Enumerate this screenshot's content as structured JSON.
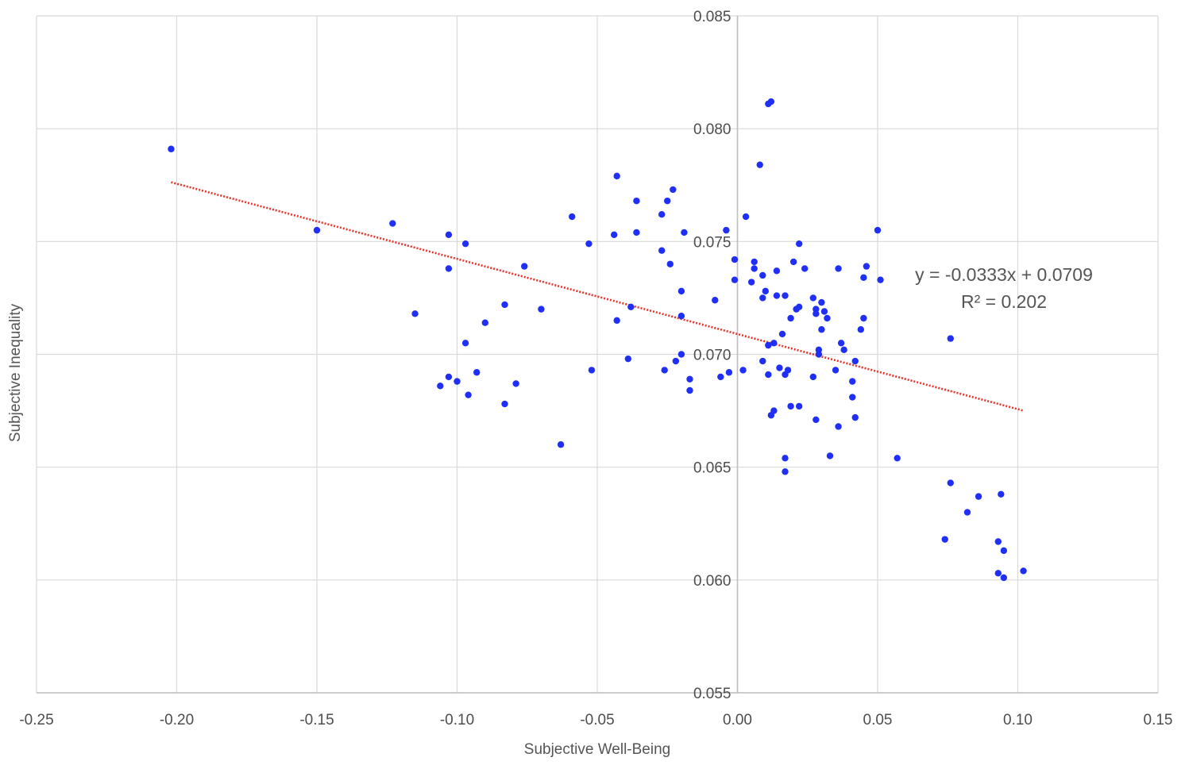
{
  "chart_data": {
    "type": "scatter",
    "title": "",
    "xlabel": "Subjective Well-Being",
    "ylabel": "Subjective Inequality",
    "xlim": [
      -0.25,
      0.15
    ],
    "ylim": [
      0.055,
      0.085
    ],
    "x_ticks": [
      "-0.25",
      "-0.20",
      "-0.15",
      "-0.10",
      "-0.05",
      "0.00",
      "0.05",
      "0.10",
      "0.15"
    ],
    "y_ticks": [
      "0.055",
      "0.060",
      "0.065",
      "0.070",
      "0.075",
      "0.080",
      "0.085"
    ],
    "grid": true,
    "legend": "none",
    "colors": {
      "points": "#1f2ff5",
      "trendline": "#e8322a",
      "grid": "#d9d9d9",
      "axis": "#bfbfbf"
    },
    "trendline": {
      "type": "linear",
      "slope": -0.0333,
      "intercept": 0.0709,
      "x_range": [
        -0.202,
        0.102
      ],
      "equation": "y = -0.0333x + 0.0709",
      "r_squared": "R² = 0.202"
    },
    "series": [
      {
        "points": [
          [
            -0.202,
            0.0791
          ],
          [
            -0.15,
            0.0755
          ],
          [
            -0.123,
            0.0758
          ],
          [
            -0.115,
            0.0718
          ],
          [
            -0.103,
            0.0753
          ],
          [
            -0.103,
            0.0738
          ],
          [
            -0.106,
            0.0686
          ],
          [
            -0.103,
            0.069
          ],
          [
            -0.1,
            0.0688
          ],
          [
            -0.097,
            0.0749
          ],
          [
            -0.097,
            0.0705
          ],
          [
            -0.096,
            0.0682
          ],
          [
            -0.093,
            0.0692
          ],
          [
            -0.09,
            0.0714
          ],
          [
            -0.083,
            0.0722
          ],
          [
            -0.083,
            0.0678
          ],
          [
            -0.079,
            0.0687
          ],
          [
            -0.076,
            0.0739
          ],
          [
            -0.07,
            0.072
          ],
          [
            -0.063,
            0.066
          ],
          [
            -0.059,
            0.0761
          ],
          [
            -0.053,
            0.0749
          ],
          [
            -0.052,
            0.0693
          ],
          [
            -0.044,
            0.0753
          ],
          [
            -0.043,
            0.0779
          ],
          [
            -0.043,
            0.0715
          ],
          [
            -0.039,
            0.0698
          ],
          [
            -0.038,
            0.0721
          ],
          [
            -0.036,
            0.0768
          ],
          [
            -0.036,
            0.0754
          ],
          [
            -0.027,
            0.0746
          ],
          [
            -0.027,
            0.0762
          ],
          [
            -0.026,
            0.0693
          ],
          [
            -0.025,
            0.0768
          ],
          [
            -0.024,
            0.074
          ],
          [
            -0.023,
            0.0773
          ],
          [
            -0.022,
            0.0697
          ],
          [
            -0.02,
            0.07
          ],
          [
            -0.02,
            0.0728
          ],
          [
            -0.02,
            0.0717
          ],
          [
            -0.019,
            0.0754
          ],
          [
            -0.017,
            0.0689
          ],
          [
            -0.017,
            0.0684
          ],
          [
            -0.008,
            0.0724
          ],
          [
            -0.006,
            0.069
          ],
          [
            -0.004,
            0.0755
          ],
          [
            -0.003,
            0.0692
          ],
          [
            -0.001,
            0.0742
          ],
          [
            -0.001,
            0.0733
          ],
          [
            0.002,
            0.0693
          ],
          [
            0.003,
            0.0761
          ],
          [
            0.005,
            0.0732
          ],
          [
            0.006,
            0.0741
          ],
          [
            0.006,
            0.0738
          ],
          [
            0.008,
            0.0784
          ],
          [
            0.009,
            0.0735
          ],
          [
            0.009,
            0.0725
          ],
          [
            0.009,
            0.0697
          ],
          [
            0.01,
            0.0728
          ],
          [
            0.011,
            0.0704
          ],
          [
            0.011,
            0.0691
          ],
          [
            0.011,
            0.0811
          ],
          [
            0.012,
            0.0812
          ],
          [
            0.012,
            0.0673
          ],
          [
            0.013,
            0.0675
          ],
          [
            0.013,
            0.0705
          ],
          [
            0.014,
            0.0737
          ],
          [
            0.014,
            0.0726
          ],
          [
            0.015,
            0.0694
          ],
          [
            0.016,
            0.0709
          ],
          [
            0.017,
            0.0726
          ],
          [
            0.017,
            0.0691
          ],
          [
            0.017,
            0.0654
          ],
          [
            0.017,
            0.0648
          ],
          [
            0.018,
            0.0693
          ],
          [
            0.019,
            0.0677
          ],
          [
            0.019,
            0.0716
          ],
          [
            0.02,
            0.0741
          ],
          [
            0.021,
            0.072
          ],
          [
            0.022,
            0.0677
          ],
          [
            0.022,
            0.0721
          ],
          [
            0.022,
            0.0749
          ],
          [
            0.024,
            0.0738
          ],
          [
            0.027,
            0.0725
          ],
          [
            0.027,
            0.069
          ],
          [
            0.028,
            0.0718
          ],
          [
            0.028,
            0.072
          ],
          [
            0.028,
            0.0671
          ],
          [
            0.029,
            0.0702
          ],
          [
            0.029,
            0.07
          ],
          [
            0.03,
            0.0723
          ],
          [
            0.03,
            0.0711
          ],
          [
            0.031,
            0.0719
          ],
          [
            0.032,
            0.0716
          ],
          [
            0.033,
            0.0655
          ],
          [
            0.035,
            0.0693
          ],
          [
            0.036,
            0.0738
          ],
          [
            0.036,
            0.0668
          ],
          [
            0.037,
            0.0705
          ],
          [
            0.038,
            0.0702
          ],
          [
            0.041,
            0.0681
          ],
          [
            0.041,
            0.0688
          ],
          [
            0.042,
            0.0697
          ],
          [
            0.042,
            0.0672
          ],
          [
            0.044,
            0.0711
          ],
          [
            0.045,
            0.0716
          ],
          [
            0.045,
            0.0734
          ],
          [
            0.046,
            0.0739
          ],
          [
            0.05,
            0.0755
          ],
          [
            0.051,
            0.0733
          ],
          [
            0.057,
            0.0654
          ],
          [
            0.074,
            0.0618
          ],
          [
            0.076,
            0.0707
          ],
          [
            0.076,
            0.0643
          ],
          [
            0.082,
            0.063
          ],
          [
            0.086,
            0.0637
          ],
          [
            0.093,
            0.0617
          ],
          [
            0.093,
            0.0603
          ],
          [
            0.094,
            0.0638
          ],
          [
            0.095,
            0.0601
          ],
          [
            0.095,
            0.0613
          ],
          [
            0.102,
            0.0604
          ]
        ]
      }
    ]
  }
}
